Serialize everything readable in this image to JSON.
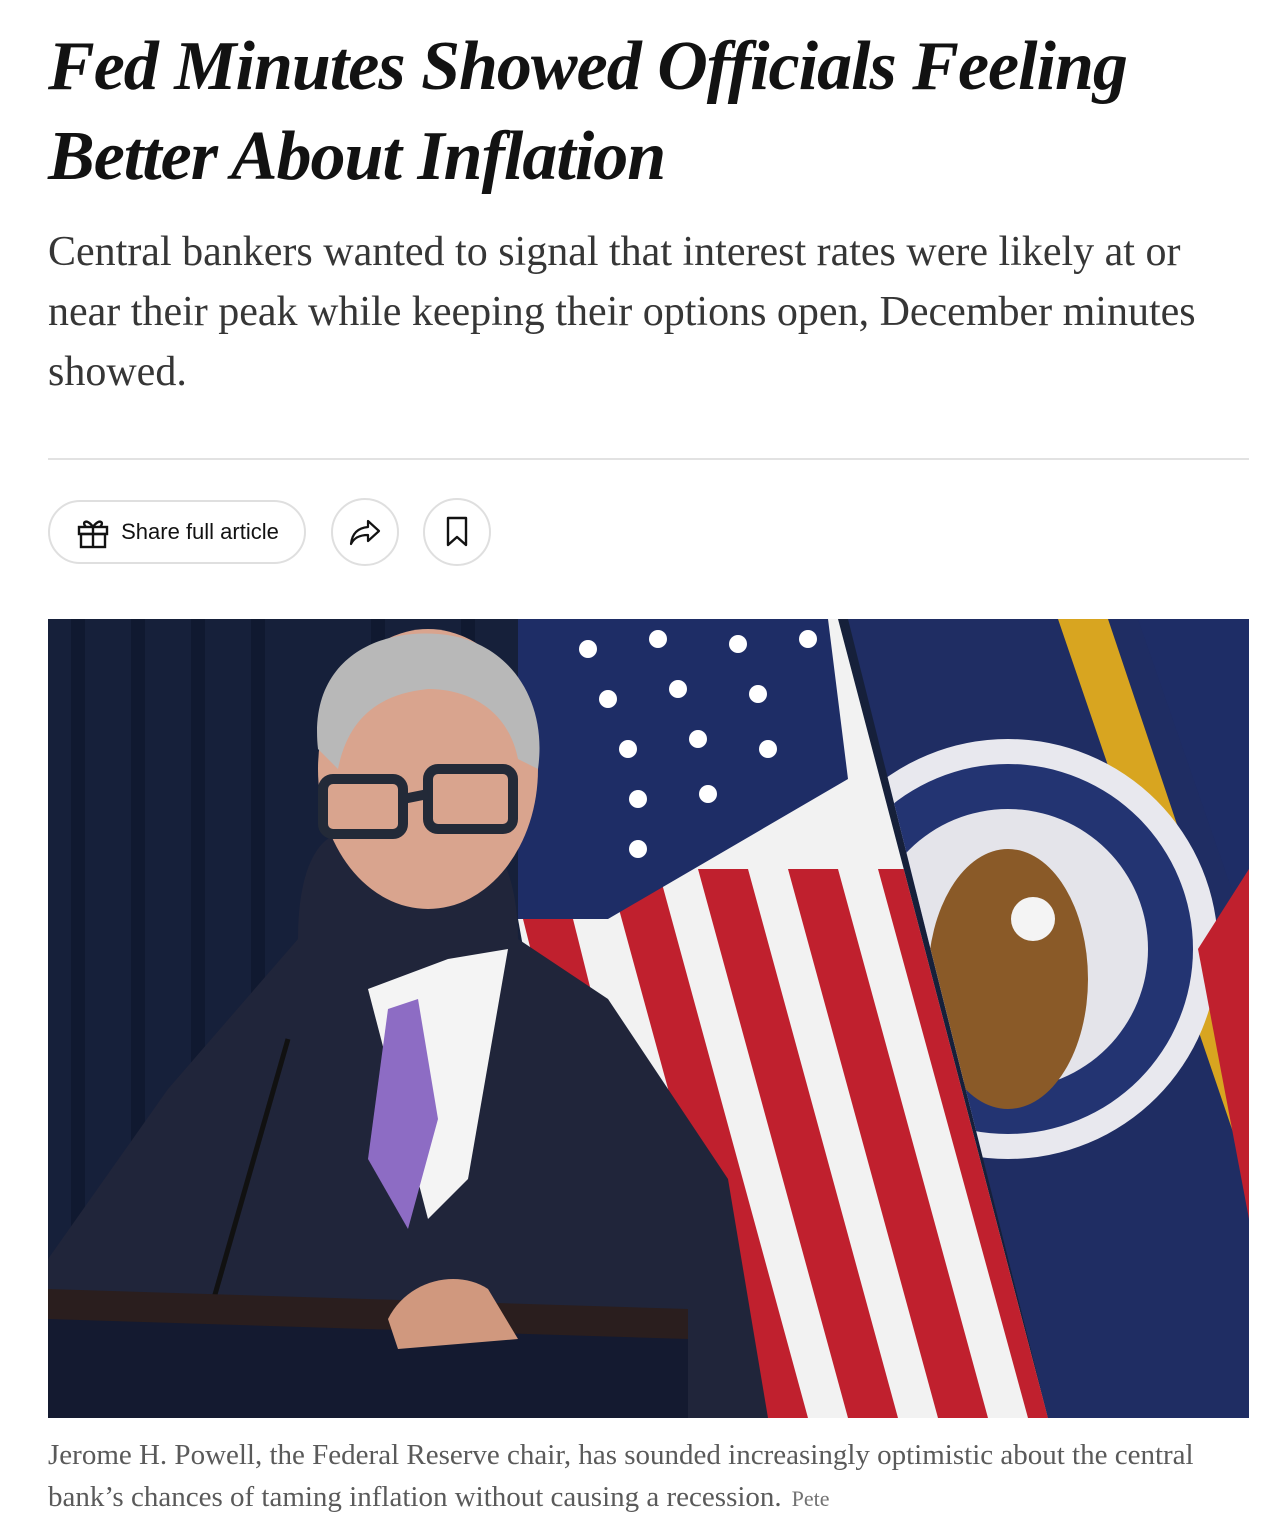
{
  "header": {
    "headline": "Fed Minutes Showed Officials Feeling Better About Inflation",
    "summary": "Central bankers wanted to signal that interest rates were likely at or near their peak while keeping their options open, December minutes showed."
  },
  "toolbar": {
    "share_full_article": "Share full article"
  },
  "figure": {
    "caption": "Jerome H. Powell, the Federal Reserve chair, has sounded increasingly optimistic about the central bank’s chances of taming inflation without causing a recession.",
    "credit": "Pete"
  }
}
